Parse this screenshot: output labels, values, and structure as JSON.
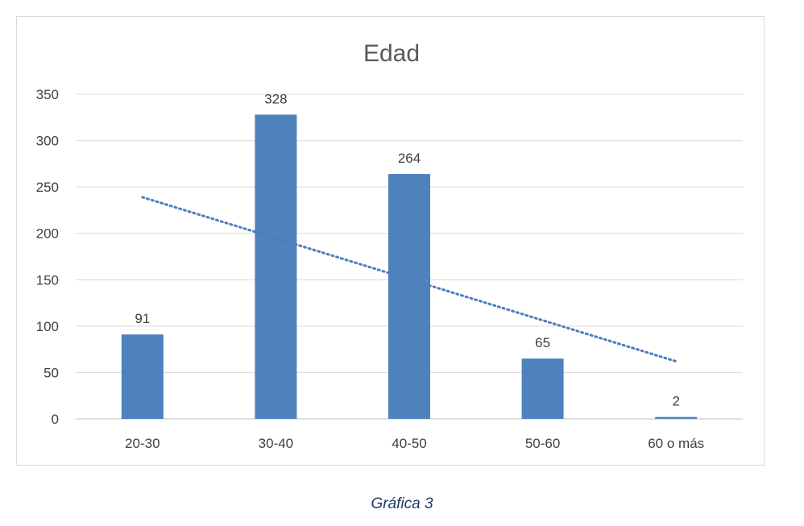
{
  "chart_data": {
    "type": "bar",
    "title": "Edad",
    "categories": [
      "20-30",
      "30-40",
      "40-50",
      "50-60",
      "60 o más"
    ],
    "values": [
      91,
      328,
      264,
      65,
      2
    ],
    "data_labels": [
      "91",
      "328",
      "264",
      "65",
      "2"
    ],
    "ylim": [
      0,
      350
    ],
    "yticks": [
      0,
      50,
      100,
      150,
      200,
      250,
      300,
      350
    ],
    "ytick_labels": [
      "0",
      "50",
      "100",
      "150",
      "200",
      "250",
      "300",
      "350"
    ],
    "xlabel": "",
    "ylabel": "",
    "grid": true,
    "legend": false,
    "trendline": {
      "type": "linear",
      "style": "dotted",
      "start": 239,
      "end": 62
    },
    "colors": {
      "bar": "#4f81bd",
      "trendline": "#4a7ebb",
      "grid": "#d9d9d9",
      "text": "#404040",
      "title": "#595959"
    }
  },
  "caption": "Gráfica 3"
}
